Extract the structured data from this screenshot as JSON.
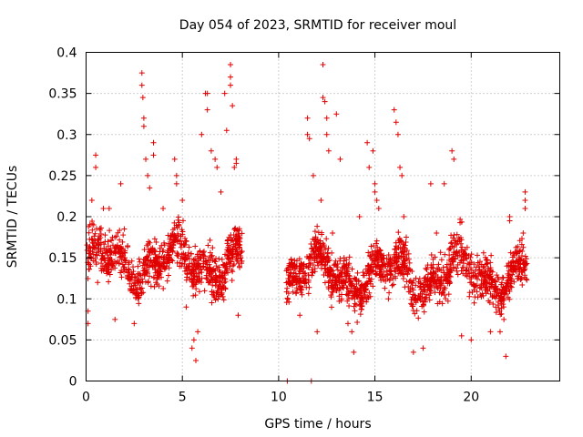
{
  "chart_data": {
    "type": "scatter",
    "title": "Day 054 of 2023, SRMTID for receiver moul",
    "xlabel": "GPS time / hours",
    "ylabel": "SRMTID / TECUs",
    "xlim": [
      0,
      24.6
    ],
    "ylim": [
      0,
      0.4
    ],
    "xticks": [
      0,
      5,
      10,
      15,
      20
    ],
    "xtick_labels": [
      "0",
      "5",
      "10",
      "15",
      "20"
    ],
    "yticks": [
      0,
      0.05,
      0.1,
      0.15,
      0.2,
      0.25,
      0.3,
      0.35,
      0.4
    ],
    "ytick_labels": [
      "0",
      "0.05",
      "0.1",
      "0.15",
      "0.2",
      "0.25",
      "0.3",
      "0.35",
      "0.4"
    ],
    "grid": true,
    "marker": "+",
    "color": "#e00000",
    "series": [
      {
        "name": "SRMTID",
        "segments": [
          {
            "start": 0.0,
            "end": 8.1,
            "base": 0.145,
            "spread": 0.045
          },
          {
            "start": 10.4,
            "end": 22.9,
            "base": 0.13,
            "spread": 0.045
          }
        ],
        "points": [
          [
            0.1,
            0.085
          ],
          [
            0.1,
            0.07
          ],
          [
            0.2,
            0.19
          ],
          [
            0.3,
            0.22
          ],
          [
            0.5,
            0.26
          ],
          [
            0.5,
            0.275
          ],
          [
            0.6,
            0.12
          ],
          [
            0.9,
            0.21
          ],
          [
            1.2,
            0.21
          ],
          [
            1.5,
            0.075
          ],
          [
            1.8,
            0.24
          ],
          [
            2.3,
            0.11
          ],
          [
            2.5,
            0.07
          ],
          [
            2.9,
            0.375
          ],
          [
            2.9,
            0.36
          ],
          [
            2.95,
            0.345
          ],
          [
            3.0,
            0.32
          ],
          [
            3.0,
            0.31
          ],
          [
            3.1,
            0.27
          ],
          [
            3.2,
            0.25
          ],
          [
            3.3,
            0.235
          ],
          [
            3.5,
            0.29
          ],
          [
            3.5,
            0.275
          ],
          [
            4.0,
            0.21
          ],
          [
            4.6,
            0.27
          ],
          [
            4.7,
            0.25
          ],
          [
            4.7,
            0.24
          ],
          [
            5.0,
            0.22
          ],
          [
            5.2,
            0.09
          ],
          [
            5.5,
            0.04
          ],
          [
            5.6,
            0.05
          ],
          [
            5.7,
            0.025
          ],
          [
            5.8,
            0.06
          ],
          [
            6.0,
            0.3
          ],
          [
            6.2,
            0.35
          ],
          [
            6.3,
            0.35
          ],
          [
            6.3,
            0.33
          ],
          [
            6.5,
            0.28
          ],
          [
            6.7,
            0.27
          ],
          [
            6.8,
            0.26
          ],
          [
            7.0,
            0.23
          ],
          [
            7.2,
            0.35
          ],
          [
            7.3,
            0.305
          ],
          [
            7.5,
            0.385
          ],
          [
            7.5,
            0.37
          ],
          [
            7.5,
            0.36
          ],
          [
            7.6,
            0.335
          ],
          [
            7.7,
            0.26
          ],
          [
            7.8,
            0.265
          ],
          [
            7.8,
            0.27
          ],
          [
            7.9,
            0.08
          ],
          [
            10.45,
            0.0
          ],
          [
            11.7,
            0.0
          ],
          [
            11.1,
            0.08
          ],
          [
            11.5,
            0.32
          ],
          [
            11.5,
            0.3
          ],
          [
            11.6,
            0.295
          ],
          [
            11.8,
            0.25
          ],
          [
            12.0,
            0.06
          ],
          [
            12.2,
            0.22
          ],
          [
            12.3,
            0.385
          ],
          [
            12.3,
            0.345
          ],
          [
            12.4,
            0.34
          ],
          [
            12.5,
            0.32
          ],
          [
            12.5,
            0.3
          ],
          [
            12.6,
            0.28
          ],
          [
            12.8,
            0.18
          ],
          [
            13.0,
            0.325
          ],
          [
            13.2,
            0.27
          ],
          [
            13.4,
            0.15
          ],
          [
            13.6,
            0.07
          ],
          [
            13.8,
            0.06
          ],
          [
            13.9,
            0.035
          ],
          [
            14.2,
            0.2
          ],
          [
            14.6,
            0.29
          ],
          [
            14.7,
            0.26
          ],
          [
            14.9,
            0.28
          ],
          [
            15.0,
            0.24
          ],
          [
            15.0,
            0.23
          ],
          [
            15.1,
            0.22
          ],
          [
            15.2,
            0.21
          ],
          [
            15.7,
            0.1
          ],
          [
            16.0,
            0.33
          ],
          [
            16.1,
            0.315
          ],
          [
            16.2,
            0.3
          ],
          [
            16.3,
            0.26
          ],
          [
            16.4,
            0.25
          ],
          [
            16.5,
            0.2
          ],
          [
            17.0,
            0.035
          ],
          [
            17.5,
            0.04
          ],
          [
            17.9,
            0.24
          ],
          [
            18.2,
            0.18
          ],
          [
            18.6,
            0.24
          ],
          [
            19.0,
            0.28
          ],
          [
            19.1,
            0.27
          ],
          [
            19.5,
            0.055
          ],
          [
            20.0,
            0.05
          ],
          [
            21.0,
            0.06
          ],
          [
            21.5,
            0.06
          ],
          [
            21.8,
            0.03
          ],
          [
            22.0,
            0.2
          ],
          [
            22.0,
            0.195
          ],
          [
            22.8,
            0.23
          ],
          [
            22.8,
            0.22
          ],
          [
            22.8,
            0.21
          ],
          [
            22.7,
            0.18
          ]
        ]
      }
    ]
  }
}
